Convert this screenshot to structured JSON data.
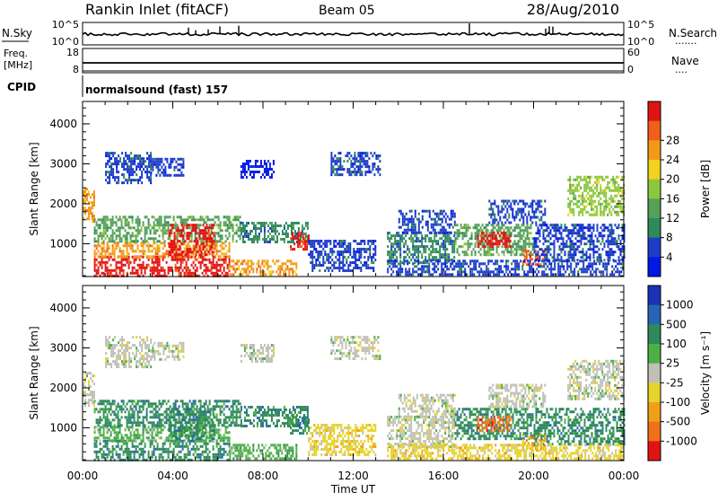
{
  "header": {
    "station": "Rankin Inlet (fitACF)",
    "beam": "Beam 05",
    "date": "28/Aug/2010"
  },
  "colors": {
    "power": [
      "#0018e6",
      "#1e3cc8",
      "#2e8a5a",
      "#56a05a",
      "#8cc83c",
      "#f2d21e",
      "#f29a18",
      "#f06018",
      "#e11414"
    ],
    "velocity": [
      "#1a32b4",
      "#2864b4",
      "#2e8a5a",
      "#4cb044",
      "#c0c0b8",
      "#e6d22a",
      "#f0a018",
      "#f07018",
      "#e11414"
    ]
  },
  "top_panels": {
    "nsky": {
      "label": "N.Sky",
      "right_label": "N.Search",
      "right_dots": "·······",
      "left_ticks": [
        "10^5",
        "10^0"
      ],
      "right_ticks": [
        "10^5",
        "10^0"
      ]
    },
    "freq": {
      "label_line1": "Freq.",
      "label_line2": "[MHz]",
      "right_label": "Nave",
      "right_dots": "····",
      "left_ticks": [
        "18",
        "8"
      ],
      "right_ticks": [
        "60",
        "0"
      ]
    },
    "cpid": {
      "label": "CPID",
      "mode": "normalsound (fast) 157"
    }
  },
  "chart_data": [
    {
      "type": "heatmap",
      "title": "",
      "xlabel": "",
      "ylabel": "Slant Range [km]",
      "x_ticks": [
        "00:00",
        "04:00",
        "08:00",
        "12:00",
        "16:00",
        "20:00",
        "00:00"
      ],
      "xlim": [
        0,
        24
      ],
      "y_ticks": [
        1000,
        2000,
        3000,
        4000
      ],
      "ylim": [
        180,
        4560
      ],
      "colorbar": {
        "label": "Power [dB]",
        "ticks": [
          "4",
          "8",
          "12",
          "16",
          "20",
          "24",
          "28"
        ]
      },
      "regions": [
        {
          "t0": 0.0,
          "t1": 0.5,
          "r0": 1550,
          "r1": 2400,
          "c": 6
        },
        {
          "t0": 0.5,
          "t1": 6.5,
          "r0": 200,
          "r1": 700,
          "c": 8
        },
        {
          "t0": 0.5,
          "t1": 6.5,
          "r0": 700,
          "r1": 1050,
          "c": 6
        },
        {
          "t0": 0.5,
          "t1": 7.0,
          "r0": 1050,
          "r1": 1700,
          "c": 3
        },
        {
          "t0": 3.8,
          "t1": 5.8,
          "r0": 700,
          "r1": 1500,
          "c": 8
        },
        {
          "t0": 6.5,
          "t1": 9.5,
          "r0": 200,
          "r1": 600,
          "c": 6
        },
        {
          "t0": 7.0,
          "t1": 10.0,
          "r0": 1050,
          "r1": 1550,
          "c": 2
        },
        {
          "t0": 1.0,
          "t1": 3.0,
          "r0": 2500,
          "r1": 3300,
          "c": 1
        },
        {
          "t0": 3.0,
          "t1": 4.5,
          "r0": 2700,
          "r1": 3150,
          "c": 1
        },
        {
          "t0": 7.0,
          "t1": 8.5,
          "r0": 2650,
          "r1": 3100,
          "c": 0
        },
        {
          "t0": 9.2,
          "t1": 10.0,
          "r0": 850,
          "r1": 1300,
          "c": 8
        },
        {
          "t0": 10.0,
          "t1": 13.0,
          "r0": 300,
          "r1": 1100,
          "c": 1
        },
        {
          "t0": 11.0,
          "t1": 13.2,
          "r0": 2750,
          "r1": 3300,
          "c": 1
        },
        {
          "t0": 13.5,
          "t1": 16.5,
          "r0": 500,
          "r1": 1300,
          "c": 2
        },
        {
          "t0": 14.0,
          "t1": 16.5,
          "r0": 1300,
          "r1": 1850,
          "c": 1
        },
        {
          "t0": 16.5,
          "t1": 20.0,
          "r0": 750,
          "r1": 1500,
          "c": 3
        },
        {
          "t0": 17.5,
          "t1": 19.0,
          "r0": 950,
          "r1": 1300,
          "c": 8
        },
        {
          "t0": 18.0,
          "t1": 20.5,
          "r0": 1500,
          "r1": 2100,
          "c": 1
        },
        {
          "t0": 19.5,
          "t1": 20.5,
          "r0": 450,
          "r1": 850,
          "c": 7
        },
        {
          "t0": 20.0,
          "t1": 24.0,
          "r0": 600,
          "r1": 1500,
          "c": 1
        },
        {
          "t0": 21.5,
          "t1": 24.0,
          "r0": 1700,
          "r1": 2700,
          "c": 4
        },
        {
          "t0": 13.5,
          "t1": 24.0,
          "r0": 200,
          "r1": 600,
          "c": 1
        }
      ]
    },
    {
      "type": "heatmap",
      "title": "",
      "xlabel": "Time UT",
      "ylabel": "Slant Range [km]",
      "x_ticks": [
        "00:00",
        "04:00",
        "08:00",
        "12:00",
        "16:00",
        "20:00",
        "00:00"
      ],
      "xlim": [
        0,
        24
      ],
      "y_ticks": [
        1000,
        2000,
        3000,
        4000
      ],
      "ylim": [
        180,
        4560
      ],
      "colorbar": {
        "label": "Velocity [m s⁻¹]",
        "ticks": [
          "1000",
          "500",
          "100",
          "25",
          "-25",
          "-100",
          "-500",
          "-1000"
        ]
      },
      "regions": [
        {
          "t0": 0.0,
          "t1": 0.5,
          "r0": 1550,
          "r1": 2400,
          "c": 4
        },
        {
          "t0": 0.5,
          "t1": 6.5,
          "r0": 200,
          "r1": 700,
          "c": 2
        },
        {
          "t0": 0.5,
          "t1": 6.5,
          "r0": 700,
          "r1": 1050,
          "c": 3
        },
        {
          "t0": 0.5,
          "t1": 7.0,
          "r0": 1050,
          "r1": 1700,
          "c": 2
        },
        {
          "t0": 3.8,
          "t1": 5.8,
          "r0": 700,
          "r1": 1500,
          "c": 2
        },
        {
          "t0": 6.5,
          "t1": 9.5,
          "r0": 200,
          "r1": 600,
          "c": 3
        },
        {
          "t0": 7.0,
          "t1": 10.0,
          "r0": 1050,
          "r1": 1550,
          "c": 2
        },
        {
          "t0": 1.0,
          "t1": 3.0,
          "r0": 2500,
          "r1": 3300,
          "c": 4
        },
        {
          "t0": 3.0,
          "t1": 4.5,
          "r0": 2700,
          "r1": 3150,
          "c": 4
        },
        {
          "t0": 7.0,
          "t1": 8.5,
          "r0": 2650,
          "r1": 3100,
          "c": 4
        },
        {
          "t0": 9.2,
          "t1": 10.0,
          "r0": 850,
          "r1": 1300,
          "c": 2
        },
        {
          "t0": 10.0,
          "t1": 13.0,
          "r0": 300,
          "r1": 1100,
          "c": 5
        },
        {
          "t0": 11.0,
          "t1": 13.2,
          "r0": 2750,
          "r1": 3300,
          "c": 4
        },
        {
          "t0": 13.5,
          "t1": 16.5,
          "r0": 500,
          "r1": 1300,
          "c": 4
        },
        {
          "t0": 14.0,
          "t1": 16.5,
          "r0": 1300,
          "r1": 1850,
          "c": 4
        },
        {
          "t0": 16.5,
          "t1": 20.0,
          "r0": 750,
          "r1": 1500,
          "c": 2
        },
        {
          "t0": 17.5,
          "t1": 19.0,
          "r0": 950,
          "r1": 1300,
          "c": 7
        },
        {
          "t0": 18.0,
          "t1": 20.5,
          "r0": 1500,
          "r1": 2100,
          "c": 4
        },
        {
          "t0": 19.5,
          "t1": 20.5,
          "r0": 450,
          "r1": 850,
          "c": 6
        },
        {
          "t0": 20.0,
          "t1": 24.0,
          "r0": 600,
          "r1": 1500,
          "c": 2
        },
        {
          "t0": 21.5,
          "t1": 24.0,
          "r0": 1700,
          "r1": 2700,
          "c": 4
        },
        {
          "t0": 13.5,
          "t1": 24.0,
          "r0": 200,
          "r1": 600,
          "c": 5
        }
      ]
    }
  ]
}
